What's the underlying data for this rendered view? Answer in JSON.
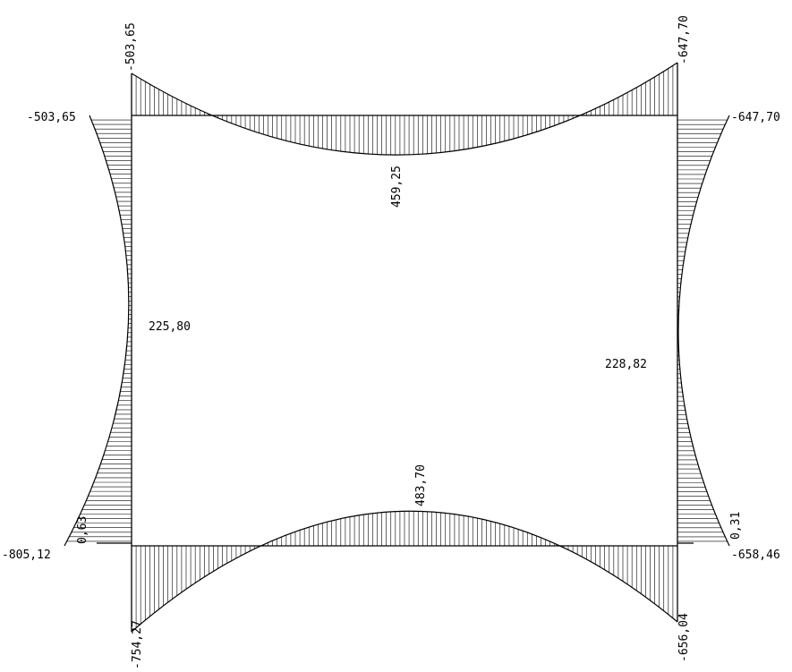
{
  "labels": {
    "top_left_vertical": "-503,65",
    "top_right_vertical": "-647,70",
    "top_left_horizontal": "-503,65",
    "top_right_horizontal": "-647,70",
    "top_beam_midspan": "459,25",
    "left_column_midspan": "225,80",
    "right_column_midspan": "228,82",
    "bottom_beam_midspan": "483,70",
    "bottom_left_horizontal": "-805,12",
    "bottom_right_horizontal": "-658,46",
    "bottom_left_vertical": "-754,27",
    "bottom_right_vertical": "-656,04",
    "bottom_left_small": "0,63",
    "bottom_right_small": "0,31"
  },
  "colors": {
    "line": "#000000",
    "hatch": "#000000",
    "background": "#ffffff"
  }
}
